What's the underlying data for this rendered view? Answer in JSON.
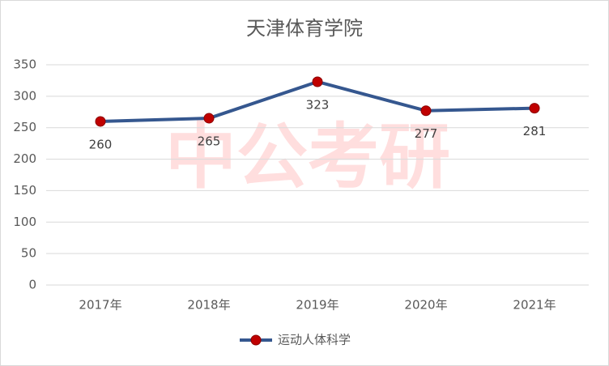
{
  "chart_data": {
    "type": "line",
    "title": "天津体育学院",
    "watermark": "中公考研",
    "categories": [
      "2017年",
      "2018年",
      "2019年",
      "2020年",
      "2021年"
    ],
    "series": [
      {
        "name": "运动人体科学",
        "color": "#35578f",
        "marker_color": "#c00000",
        "values": [
          260,
          265,
          323,
          277,
          281
        ]
      }
    ],
    "ylim": [
      0,
      350
    ],
    "yticks": [
      0,
      50,
      100,
      150,
      200,
      250,
      300,
      350
    ],
    "grid": true,
    "legend": "bottom"
  }
}
